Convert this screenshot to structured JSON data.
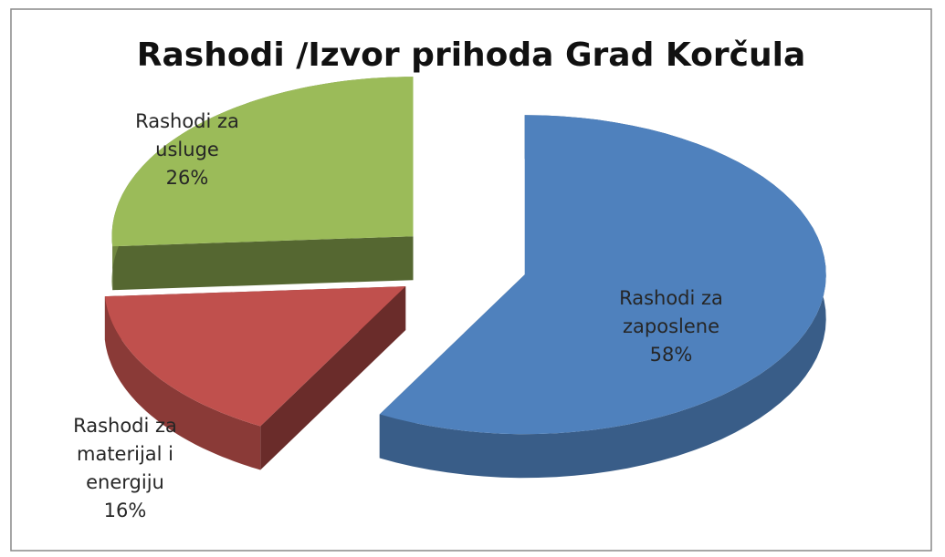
{
  "chart_data": {
    "type": "pie3d",
    "title": "Rashodi /Izvor prihoda Grad Korčula",
    "categories": [
      "Rashodi za zaposlene",
      "Rashodi za materijal i energiju",
      "Rashodi za usluge"
    ],
    "values": [
      58,
      16,
      26
    ],
    "value_labels": [
      "58%",
      "16%",
      "26%"
    ],
    "colors": [
      "#4f81bd",
      "#c0504d",
      "#9bbb59"
    ]
  }
}
